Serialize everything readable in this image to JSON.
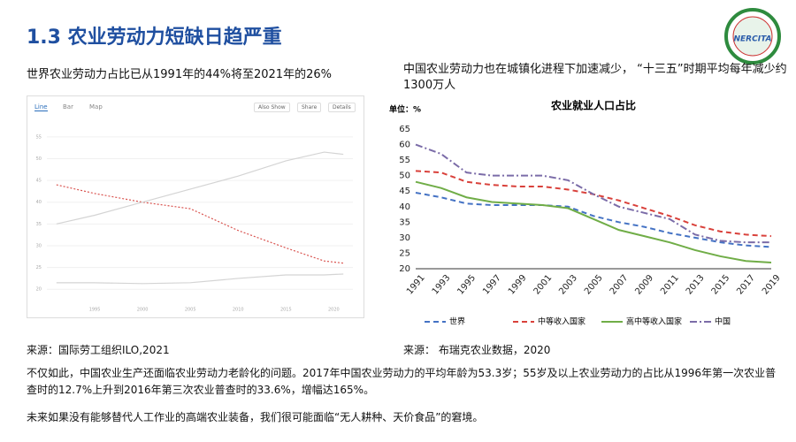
{
  "header": {
    "title": "1.3 农业劳动力短缺日趋严重",
    "logo": "NERCITA"
  },
  "left": {
    "caption": "世界农业劳动力占比已从1991年的44%将至2021年的26%",
    "source": "来源：国际劳工组织ILO,2021"
  },
  "right": {
    "caption": "中国农业劳动力也在城镇化进程下加速减少，  “十三五”时期平均每年减少约1300万人",
    "source": "来源： 布瑞克农业数据，2020"
  },
  "body": {
    "paragraph": "不仅如此，中国农业生产还面临农业劳动力老龄化的问题。2017年中国农业劳动力的平均年龄为53.3岁；55岁及以上农业劳动力的占比从1996年第一次农业普查时的12.7%上升到2016年第三次农业普查时的33.6%，增幅达165%。",
    "conclusion": "未来如果没有能够替代人工作业的高端农业装备，我们很可能面临“无人耕种、天价食品”的窘境。"
  },
  "chart_data": [
    {
      "type": "line",
      "tabs": [
        "Line",
        "Bar",
        "Map"
      ],
      "buttons": [
        "Also Show",
        "Share",
        "Details"
      ],
      "x": [
        1991,
        1995,
        2000,
        2005,
        2010,
        2015,
        2019,
        2021
      ],
      "xlim": [
        1990,
        2022
      ],
      "xticks": [
        1995,
        2000,
        2005,
        2010,
        2015,
        2020
      ],
      "ylim": [
        17,
        57
      ],
      "yticks": [
        20,
        25,
        30,
        35,
        40,
        45,
        50,
        55
      ],
      "grid": true,
      "series": [
        {
          "color": "#d9534f",
          "style": "dotted",
          "values": [
            44,
            42,
            40,
            38.5,
            33.5,
            29.5,
            26.5,
            26
          ]
        },
        {
          "color": "#d4d4d4",
          "style": "solid",
          "values": [
            35,
            37,
            40,
            43,
            46,
            49.5,
            51.5,
            51
          ]
        },
        {
          "color": "#d4d4d4",
          "style": "solid",
          "values": [
            21.5,
            21.5,
            21.3,
            21.5,
            22.5,
            23.3,
            23.3,
            23.5
          ]
        }
      ]
    },
    {
      "type": "line",
      "title": "农业就业人口占比",
      "y_unit": "单位：%",
      "categories": [
        "1991",
        "1993",
        "1995",
        "1997",
        "1999",
        "2001",
        "2003",
        "2005",
        "2007",
        "2009",
        "2011",
        "2013",
        "2015",
        "2017",
        "2019"
      ],
      "ylim": [
        20,
        65
      ],
      "yticks": [
        20,
        25,
        30,
        35,
        40,
        45,
        50,
        55,
        60,
        65
      ],
      "grid": false,
      "series": [
        {
          "name": "世界",
          "color": "#4472c4",
          "style": "dashed",
          "values": [
            44.5,
            43,
            41,
            40.5,
            40.5,
            40.5,
            40,
            37,
            35,
            33.5,
            31.5,
            30,
            28.5,
            27.5,
            27
          ]
        },
        {
          "name": "中等收入国家",
          "color": "#d9413b",
          "style": "dashed",
          "values": [
            51.5,
            51,
            48,
            47,
            46.5,
            46.5,
            45.5,
            44,
            42,
            39.5,
            37,
            34,
            32,
            31,
            30.5
          ]
        },
        {
          "name": "高中等收入国家",
          "color": "#70ad47",
          "style": "solid",
          "values": [
            48,
            46,
            43,
            41.5,
            41,
            40.5,
            39.5,
            36,
            32.5,
            30.5,
            28.5,
            26,
            24,
            22.5,
            22
          ]
        },
        {
          "name": "中国",
          "color": "#7b6ca8",
          "style": "dashdot",
          "values": [
            60,
            57,
            51,
            50,
            50,
            50,
            48.5,
            44,
            40,
            38,
            36,
            31,
            29,
            28.5,
            28.5
          ]
        }
      ]
    }
  ]
}
